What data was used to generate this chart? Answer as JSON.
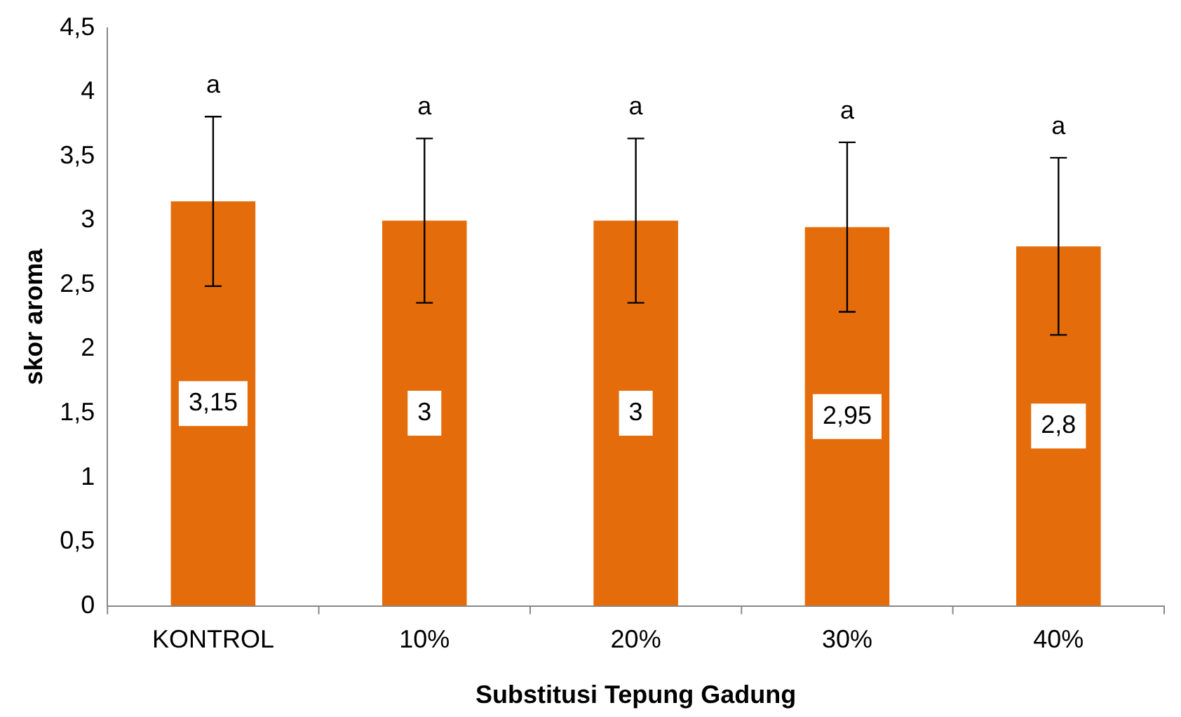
{
  "chart_data": {
    "type": "bar",
    "xlabel": "Substitusi Tepung Gadung",
    "ylabel": "skor aroma",
    "categories": [
      "KONTROL",
      "10%",
      "20%",
      "30%",
      "40%"
    ],
    "values": [
      3.15,
      3,
      3,
      2.95,
      2.8
    ],
    "color": "#e46c0a",
    "errors": [
      0.66,
      0.64,
      0.64,
      0.66,
      0.69
    ],
    "value_labels": [
      "3,15",
      "3",
      "3",
      "2,95",
      "2,8"
    ],
    "ylim": [
      0,
      4.5
    ],
    "yticks": [
      0,
      {
        "value": 0.5,
        "label": "0,5"
      },
      1,
      {
        "value": 1.5,
        "label": "1,5"
      },
      2,
      {
        "value": 2.5,
        "label": "2,5"
      },
      3,
      {
        "value": 3.5,
        "label": "3,5"
      },
      4,
      {
        "value": 4.5,
        "label": "4,5"
      }
    ],
    "grid": false,
    "legend": false,
    "annotations": [
      "a",
      "a",
      "a",
      "a",
      "a"
    ]
  }
}
